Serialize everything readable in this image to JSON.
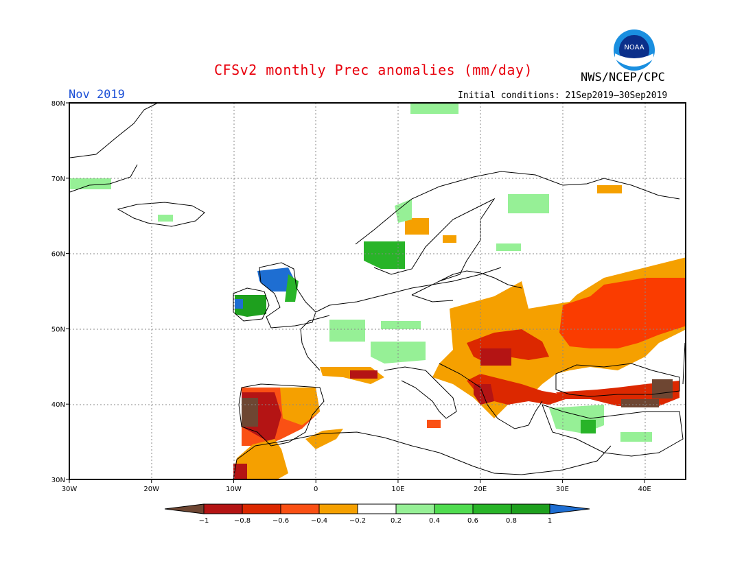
{
  "header": {
    "title": "CFSv2 monthly Prec anomalies (mm/day)",
    "organization": "NWS/NCEP/CPC",
    "month": "Nov 2019",
    "initial_conditions": "Initial conditions: 21Sep2019–30Sep2019",
    "logo_text": "NOAA",
    "title_color": "#e8000c",
    "month_color": "#1b4fd6"
  },
  "map": {
    "region": "Europe",
    "lon_range": [
      -30,
      45
    ],
    "lat_range": [
      30,
      80
    ],
    "lon_ticks": [
      "30W",
      "20W",
      "10W",
      "0",
      "10E",
      "20E",
      "30E",
      "40E"
    ],
    "lat_ticks": [
      "80N",
      "70N",
      "60N",
      "50N",
      "40N",
      "30N"
    ],
    "anomaly_areas": [
      {
        "area": "Iberian Peninsula",
        "level": -0.9,
        "color": "#b41414"
      },
      {
        "area": "Morocco",
        "level": -0.3,
        "color": "#f5a000"
      },
      {
        "area": "Balkans",
        "level": -0.8,
        "color": "#b41414"
      },
      {
        "area": "Hungary / Romania",
        "level": -0.5,
        "color": "#f5a000"
      },
      {
        "area": "Ukraine / SW Russia",
        "level": -0.6,
        "color": "#fa3c00"
      },
      {
        "area": "Northern Turkey coast",
        "level": -1.0,
        "color": "#6e4632"
      },
      {
        "area": "Western Ireland",
        "level": 0.9,
        "color": "#1e6ed2"
      },
      {
        "area": "Western Scotland",
        "level": 0.9,
        "color": "#1e6ed2"
      },
      {
        "area": "Southern Norway",
        "level": 0.7,
        "color": "#1ea01e"
      },
      {
        "area": "Central Turkey",
        "level": 0.7,
        "color": "#1ea01e"
      },
      {
        "area": "France / Germany",
        "level": 0.3,
        "color": "#96f096"
      }
    ]
  },
  "colorbar": {
    "labels": [
      "−1",
      "−0.8",
      "−0.6",
      "−0.4",
      "−0.2",
      "0.2",
      "0.4",
      "0.6",
      "0.8",
      "1"
    ],
    "colors": [
      "#6e4632",
      "#b41414",
      "#dc2800",
      "#fa5014",
      "#f5a000",
      "#ffffff",
      "#96f096",
      "#50dc50",
      "#28b428",
      "#1ea01e",
      "#1e6ed2"
    ]
  }
}
